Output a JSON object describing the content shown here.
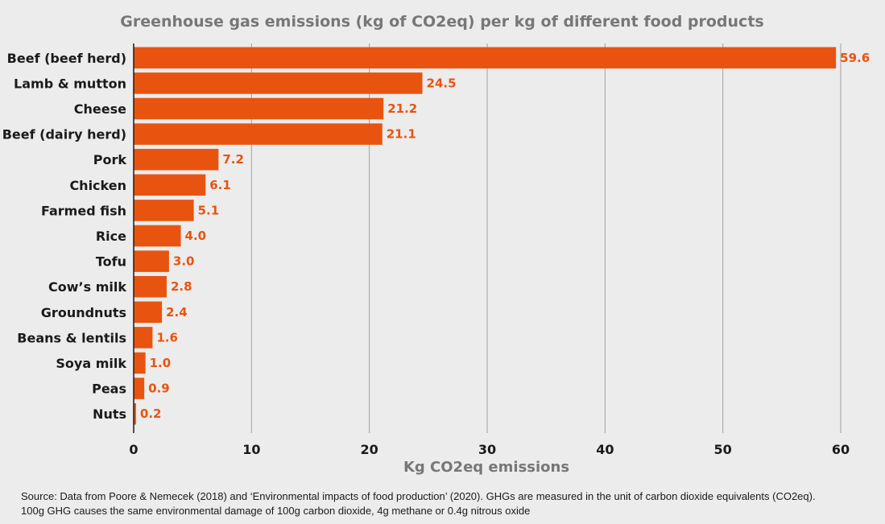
{
  "chart_data": {
    "type": "bar",
    "orientation": "horizontal",
    "title": "Greenhouse gas emissions (kg of CO2eq) per kg of different food products",
    "xlabel": "Kg CO2eq emissions",
    "ylabel": "",
    "categories": [
      "Beef (beef herd)",
      "Lamb & mutton",
      "Cheese",
      "Beef (dairy herd)",
      "Pork",
      "Chicken",
      "Farmed fish",
      "Rice",
      "Tofu",
      "Cow’s milk",
      "Groundnuts",
      "Beans & lentils",
      "Soya milk",
      "Peas",
      "Nuts"
    ],
    "values": [
      59.6,
      24.5,
      21.2,
      21.1,
      7.2,
      6.1,
      5.1,
      4.0,
      3.0,
      2.8,
      2.4,
      1.6,
      1.0,
      0.9,
      0.2
    ],
    "value_labels": [
      "59.6",
      "24.5",
      "21.2",
      "21.1",
      "7.2",
      "6.1",
      "5.1",
      "4.0",
      "3.0",
      "2.8",
      "2.4",
      "1.6",
      "1.0",
      "0.9",
      "0.2"
    ],
    "xlim": [
      0,
      60
    ],
    "xticks": [
      "0",
      "10",
      "20",
      "30",
      "40",
      "50",
      "60"
    ],
    "grid": true,
    "legend": "none",
    "bar_color": "#e8540f",
    "value_label_color": "#e8540f",
    "gridline_color": "#a0a0a0",
    "background_color": "#ececec"
  },
  "source": {
    "line1": "Source: Data from Poore & Nemecek (2018) and ‘Environmental impacts of food production’ (2020). GHGs are measured in the unit of carbon dioxide equivalents (CO2eq).",
    "line2": "100g GHG causes the same environmental damage of 100g carbon dioxide, 4g methane or 0.4g nitrous oxide"
  }
}
